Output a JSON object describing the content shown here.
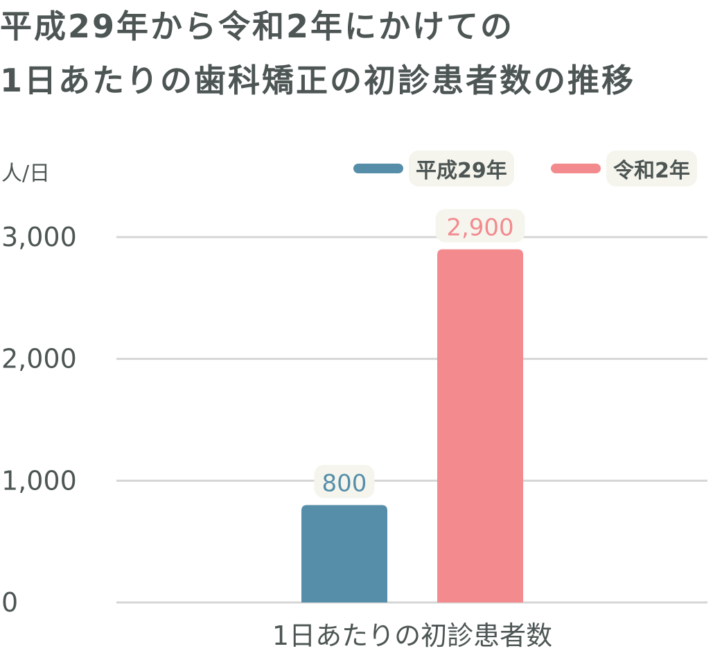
{
  "title": {
    "line1": "平成29年から令和2年にかけての",
    "line2": "1日あたりの歯科矯正の初診患者数の推移"
  },
  "unit_label": "人/日",
  "legend": [
    {
      "label": "平成29年",
      "color": "#568ea9"
    },
    {
      "label": "令和2年",
      "color": "#f38a8e"
    }
  ],
  "chart_data": {
    "type": "bar",
    "categories": [
      "1日あたりの初診患者数"
    ],
    "series": [
      {
        "name": "平成29年",
        "values": [
          800
        ],
        "value_label": "800",
        "color": "#568ea9"
      },
      {
        "name": "令和2年",
        "values": [
          2900
        ],
        "value_label": "2,900",
        "color": "#f38a8e"
      }
    ],
    "ylabel": "人/日",
    "ylim": [
      0,
      3000
    ],
    "yticks": [
      0,
      1000,
      2000,
      3000
    ],
    "ytick_labels": [
      "0",
      "1,000",
      "2,000",
      "3,000"
    ],
    "grid": true,
    "legend_position": "top-right",
    "gridline_color": "#d6d6d6"
  }
}
